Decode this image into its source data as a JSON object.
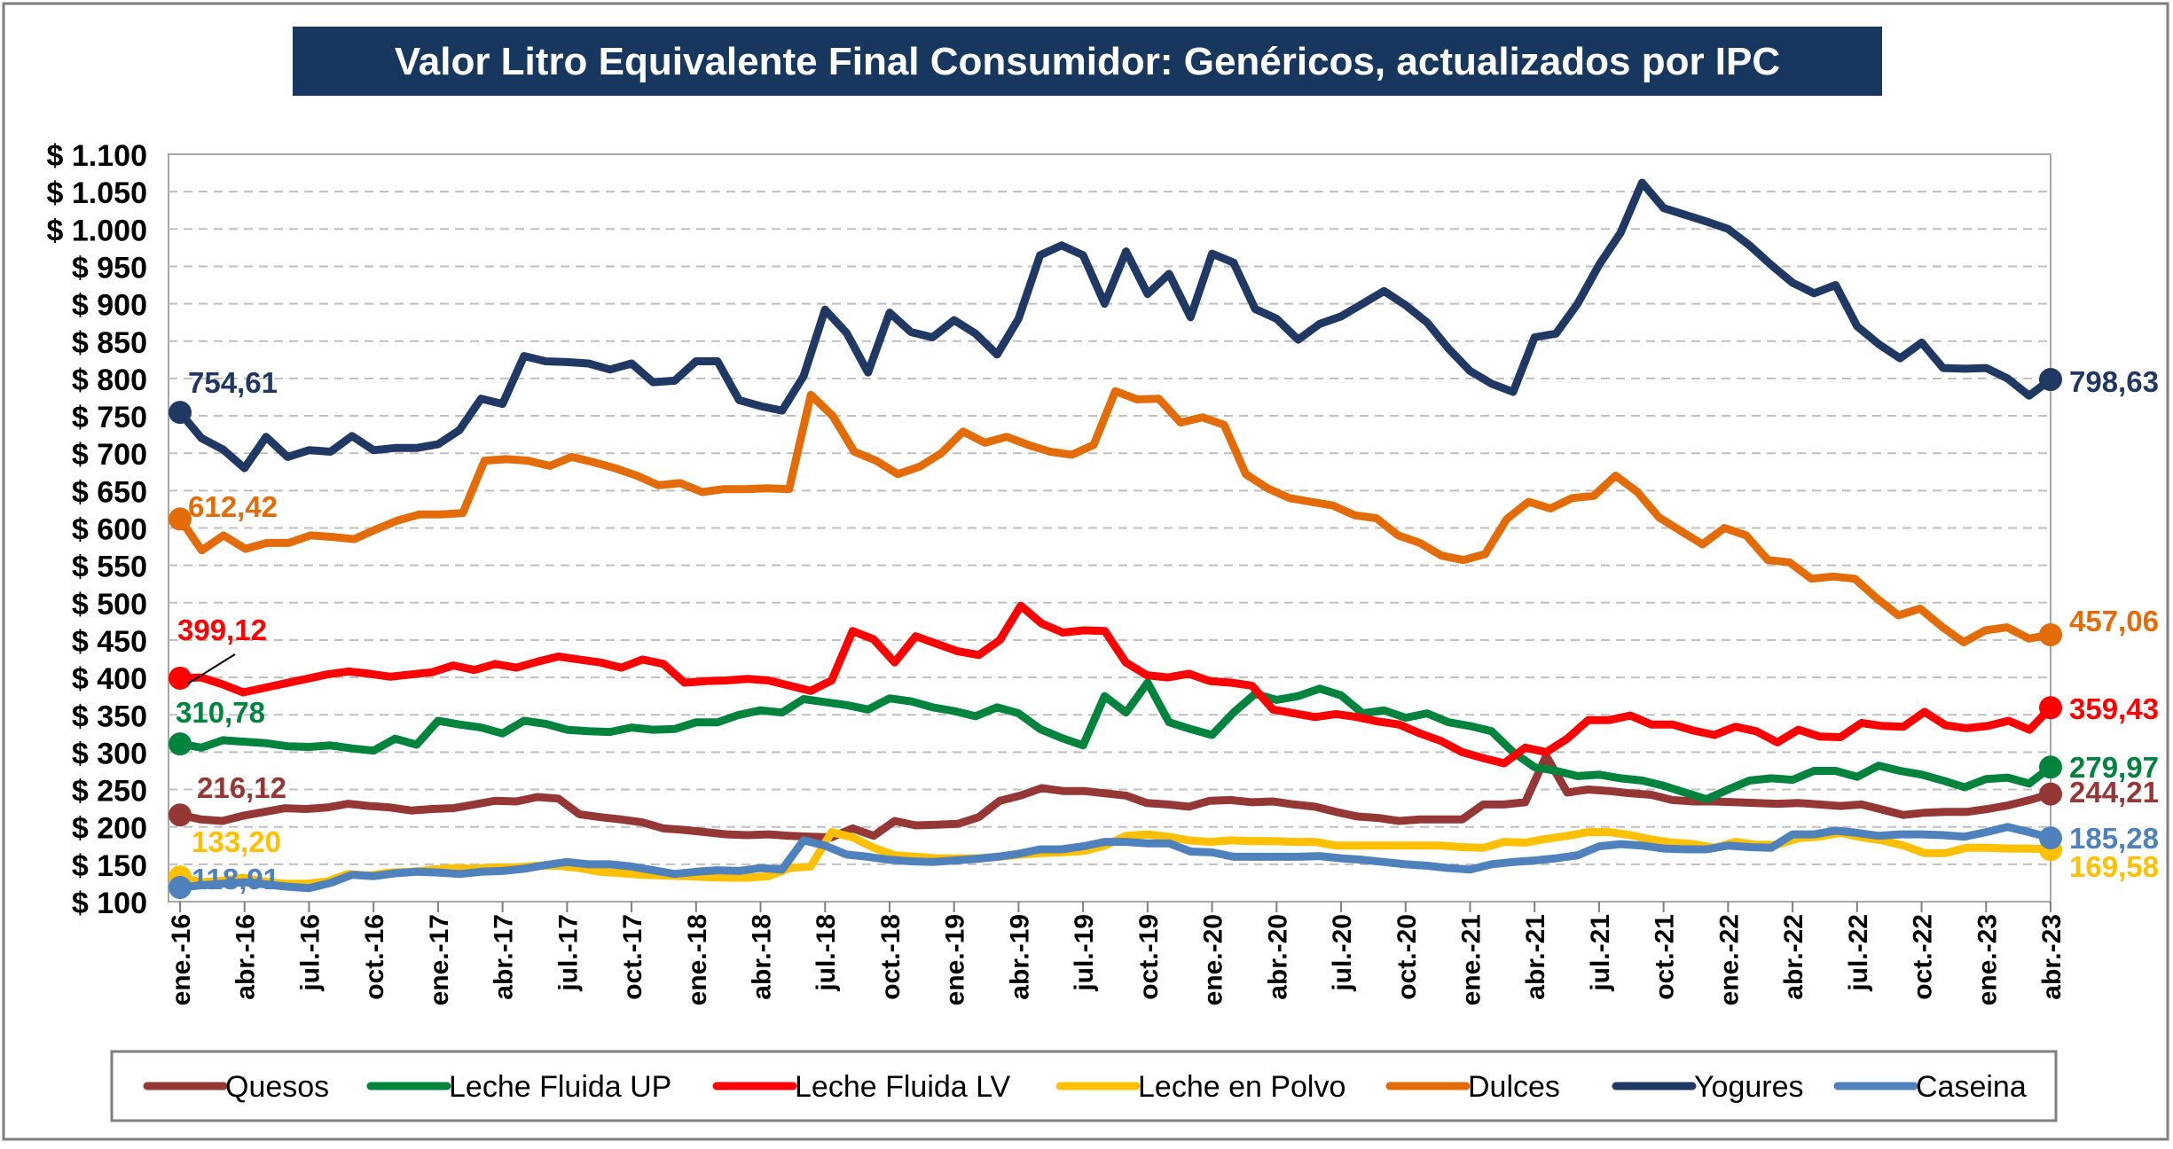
{
  "chart_data": {
    "type": "line",
    "title": "Valor Litro Equivalente Final Consumidor: Genéricos, actualizados por IPC",
    "title_bg": "#17375E",
    "ylim": [
      100,
      1100
    ],
    "ystep": 50,
    "y_tick_labels": [
      "$ 100",
      "$ 150",
      "$ 200",
      "$ 250",
      "$ 300",
      "$ 350",
      "$ 400",
      "$ 450",
      "$ 500",
      "$ 550",
      "$ 600",
      "$ 650",
      "$ 700",
      "$ 750",
      "$ 800",
      "$ 850",
      "$ 900",
      "$ 950",
      "$ 1.000",
      "$ 1.050",
      "$ 1.100"
    ],
    "x_tick_labels": [
      "ene.-16",
      "abr.-16",
      "jul.-16",
      "oct.-16",
      "ene.-17",
      "abr.-17",
      "jul.-17",
      "oct.-17",
      "ene.-18",
      "abr.-18",
      "jul.-18",
      "oct.-18",
      "ene.-19",
      "abr.-19",
      "jul.-19",
      "oct.-19",
      "ene.-20",
      "abr.-20",
      "jul.-20",
      "oct.-20",
      "ene.-21",
      "abr.-21",
      "jul.-21",
      "oct.-21",
      "ene.-22",
      "abr.-22",
      "jul.-22",
      "oct.-22",
      "ene.-23",
      "abr.-23"
    ],
    "x_tick_every": 3,
    "grid": true,
    "legend_position": "bottom",
    "series": [
      {
        "name": "Quesos",
        "color": "#953735",
        "start_label": "216,12",
        "end_label": "244,21",
        "values": [
          216,
          210,
          208,
          215,
          220,
          225,
          224,
          226,
          231,
          228,
          226,
          222,
          224,
          225,
          230,
          235,
          234,
          240,
          238,
          217,
          213,
          210,
          206,
          198,
          196,
          193,
          190,
          189,
          190,
          188,
          187,
          186,
          198,
          188,
          208,
          202,
          203,
          204,
          213,
          235,
          242,
          252,
          248,
          248,
          245,
          242,
          232,
          230,
          227,
          235,
          236,
          233,
          234,
          230,
          227,
          220,
          214,
          212,
          208,
          210,
          210,
          210,
          230,
          230,
          233,
          295,
          246,
          250,
          248,
          245,
          243,
          236,
          234,
          234,
          233,
          232,
          231,
          232,
          230,
          228,
          230,
          223,
          216,
          219,
          220,
          220,
          224,
          229,
          236,
          244
        ]
      },
      {
        "name": "Leche Fluida UP",
        "color": "#00843D",
        "start_label": "310,78",
        "end_label": "279,97",
        "values": [
          311,
          306,
          316,
          314,
          312,
          308,
          307,
          309,
          305,
          302,
          318,
          310,
          342,
          337,
          333,
          325,
          342,
          338,
          330,
          328,
          327,
          333,
          330,
          331,
          340,
          340,
          350,
          356,
          353,
          371,
          367,
          363,
          357,
          372,
          368,
          360,
          355,
          348,
          360,
          352,
          331,
          319,
          309,
          375,
          353,
          393,
          340,
          331,
          323,
          353,
          378,
          370,
          375,
          385,
          376,
          352,
          356,
          346,
          352,
          340,
          335,
          328,
          300,
          280,
          275,
          268,
          270,
          265,
          262,
          255,
          246,
          237,
          250,
          262,
          265,
          263,
          275,
          275,
          267,
          282,
          275,
          270,
          262,
          253,
          264,
          266,
          258,
          279.97
        ]
      },
      {
        "name": "Leche Fluida LV",
        "color": "#FF0000",
        "start_label": "399,12",
        "end_label": "359,43",
        "values": [
          399,
          400,
          391,
          380,
          386,
          392,
          398,
          404,
          408,
          405,
          401,
          404,
          407,
          416,
          410,
          418,
          413,
          421,
          428,
          424,
          420,
          413,
          424,
          418,
          393,
          395,
          396,
          398,
          396,
          389,
          382,
          396,
          462,
          451,
          420,
          455,
          445,
          435,
          430,
          450,
          496,
          472,
          460,
          463,
          462,
          420,
          403,
          400,
          405,
          395,
          393,
          389,
          357,
          352,
          347,
          351,
          347,
          341,
          337,
          325,
          315,
          300,
          292,
          285,
          306,
          300,
          318,
          343,
          343,
          349,
          337,
          337,
          329,
          323,
          334,
          328,
          313,
          330,
          321,
          320,
          339,
          335,
          334,
          354,
          336,
          332,
          335,
          342,
          330,
          359.43
        ]
      },
      {
        "name": "Leche en Polvo",
        "color": "#FFC000",
        "start_label": "133,20",
        "end_label": "169,58",
        "values": [
          133,
          126,
          128,
          132,
          127,
          124,
          124,
          127,
          137,
          135,
          139,
          140,
          143,
          145,
          144,
          146,
          146,
          148,
          148,
          145,
          140,
          138,
          136,
          135,
          134,
          133,
          132,
          132,
          134,
          145,
          147,
          193,
          186,
          172,
          162,
          160,
          158,
          158,
          158,
          160,
          163,
          165,
          166,
          168,
          175,
          188,
          190,
          187,
          182,
          180,
          182,
          181,
          181,
          180,
          180,
          175,
          175,
          175,
          175,
          175,
          175,
          173,
          172,
          180,
          179,
          184,
          188,
          193,
          193,
          189,
          183,
          179,
          177,
          172,
          180,
          176,
          176,
          185,
          187,
          192,
          186,
          182,
          175,
          165,
          165,
          172,
          172,
          171,
          171,
          169.58
        ]
      },
      {
        "name": "Dulces",
        "color": "#E36C09",
        "start_label": "612,42",
        "end_label": "457,06",
        "values": [
          612,
          570,
          590,
          572,
          580,
          580,
          590,
          588,
          585,
          598,
          610,
          618,
          618,
          620,
          690,
          692,
          690,
          683,
          695,
          688,
          680,
          670,
          657,
          660,
          648,
          652,
          652,
          653,
          652,
          778,
          750,
          702,
          690,
          672,
          682,
          700,
          729,
          714,
          722,
          711,
          702,
          698,
          711,
          783,
          772,
          773,
          741,
          748,
          738,
          672,
          653,
          640,
          635,
          630,
          617,
          613,
          590,
          580,
          563,
          557,
          565,
          612,
          635,
          626,
          640,
          643,
          670,
          648,
          614,
          596,
          578,
          600,
          590,
          557,
          554,
          532,
          535,
          532,
          506,
          483,
          492,
          468,
          447,
          463,
          467,
          452,
          457.06
        ]
      },
      {
        "name": "Yogures",
        "color": "#1F3864",
        "start_label": "754,61",
        "end_label": "798,63",
        "values": [
          754.61,
          720,
          705,
          680,
          722,
          695,
          704,
          702,
          723,
          704,
          707,
          707,
          712,
          731,
          773,
          766,
          830,
          823,
          822,
          820,
          812,
          820,
          795,
          797,
          823,
          823,
          771,
          763,
          757,
          803,
          892,
          861,
          808,
          888,
          862,
          855,
          878,
          860,
          832,
          880,
          965,
          978,
          965,
          900,
          970,
          913,
          940,
          882,
          967,
          955,
          893,
          880,
          852,
          873,
          883,
          900,
          917,
          898,
          875,
          840,
          810,
          793,
          782,
          855,
          860,
          900,
          952,
          995,
          1062,
          1028,
          1019,
          1010,
          1000,
          978,
          952,
          928,
          914,
          925,
          870,
          846,
          827,
          848,
          814,
          813,
          814,
          800,
          777,
          798.63
        ]
      },
      {
        "name": "Caseina",
        "color": "#4F81BD",
        "start_label": "118,91",
        "end_label": "185,28",
        "values": [
          118.91,
          122,
          124,
          126,
          123,
          120,
          118,
          125,
          136,
          134,
          138,
          140,
          139,
          137,
          140,
          141,
          144,
          149,
          153,
          150,
          150,
          147,
          142,
          137,
          140,
          142,
          141,
          145,
          143,
          182,
          175,
          163,
          160,
          156,
          154,
          153,
          155,
          157,
          160,
          164,
          170,
          170,
          174,
          180,
          180,
          178,
          178,
          167,
          166,
          160,
          160,
          160,
          160,
          161,
          158,
          156,
          153,
          150,
          148,
          145,
          143,
          150,
          153,
          155,
          158,
          162,
          174,
          177,
          175,
          171,
          170,
          170,
          175,
          173,
          172,
          190,
          190,
          195,
          192,
          188,
          190,
          190,
          189,
          187,
          193,
          200,
          193,
          185.28
        ]
      }
    ]
  }
}
